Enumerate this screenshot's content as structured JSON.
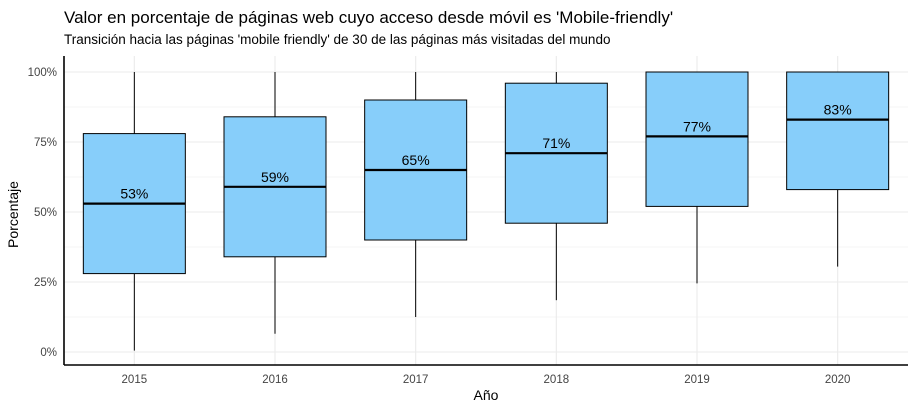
{
  "chart_data": {
    "type": "boxplot",
    "title": "Valor en porcentaje de páginas web cuyo acceso desde móvil es 'Mobile-friendly'",
    "subtitle": "Transición hacia las páginas 'mobile friendly' de 30 de las páginas más visitadas del mundo",
    "xlabel": "Año",
    "ylabel": "Porcentaje",
    "ylim": [
      0,
      100
    ],
    "y_ticks": [
      0,
      25,
      50,
      75,
      100
    ],
    "y_tick_labels": [
      "0%",
      "25%",
      "50%",
      "75%",
      "100%"
    ],
    "grid": true,
    "legend": "none",
    "colors": {
      "box_fill": "#87CEFA",
      "box_stroke": "#000000",
      "grid": "#ebebeb"
    },
    "categories": [
      "2015",
      "2016",
      "2017",
      "2018",
      "2019",
      "2020"
    ],
    "boxes": [
      {
        "x": "2015",
        "min": 0.5,
        "q1": 28,
        "median": 53,
        "q3": 78,
        "max": 100,
        "label": "53%"
      },
      {
        "x": "2016",
        "min": 6.5,
        "q1": 34,
        "median": 59,
        "q3": 84,
        "max": 100,
        "label": "59%"
      },
      {
        "x": "2017",
        "min": 12.5,
        "q1": 40,
        "median": 65,
        "q3": 90,
        "max": 100,
        "label": "65%"
      },
      {
        "x": "2018",
        "min": 18.5,
        "q1": 46,
        "median": 71,
        "q3": 96,
        "max": 100,
        "label": "71%"
      },
      {
        "x": "2019",
        "min": 24.5,
        "q1": 52,
        "median": 77,
        "q3": 100,
        "max": 100,
        "label": "77%"
      },
      {
        "x": "2020",
        "min": 30.5,
        "q1": 58,
        "median": 83,
        "q3": 100,
        "max": 100,
        "label": "83%"
      }
    ]
  }
}
